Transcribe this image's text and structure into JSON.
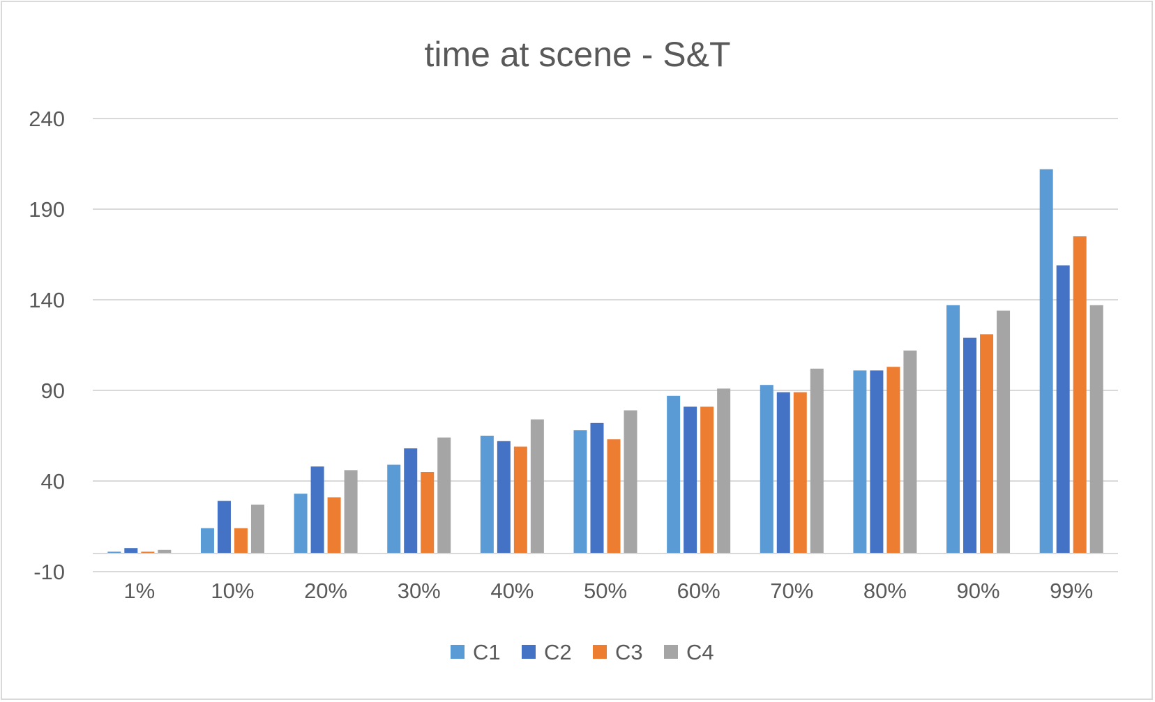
{
  "chart_data": {
    "type": "bar",
    "title": "time at scene - S&T",
    "xlabel": "",
    "ylabel": "",
    "categories": [
      "1%",
      "10%",
      "20%",
      "30%",
      "40%",
      "50%",
      "60%",
      "70%",
      "80%",
      "90%",
      "99%"
    ],
    "ylim": [
      -10,
      240
    ],
    "yticks": [
      "240",
      "190",
      "140",
      "90",
      "40",
      "-10"
    ],
    "ytick_values": [
      240,
      190,
      140,
      90,
      40,
      -10
    ],
    "grid": true,
    "legend_position": "bottom",
    "series": [
      {
        "name": "C1",
        "color": "#5B9BD5",
        "values": [
          1,
          14,
          33,
          49,
          65,
          68,
          87,
          93,
          101,
          137,
          212
        ]
      },
      {
        "name": "C2",
        "color": "#4472C4",
        "values": [
          3,
          29,
          48,
          58,
          62,
          72,
          81,
          89,
          101,
          119,
          159
        ]
      },
      {
        "name": "C3",
        "color": "#ED7D31",
        "values": [
          1,
          14,
          31,
          45,
          59,
          63,
          81,
          89,
          103,
          121,
          175
        ]
      },
      {
        "name": "C4",
        "color": "#A5A5A5",
        "values": [
          2,
          27,
          46,
          64,
          74,
          79,
          91,
          102,
          112,
          134,
          137
        ]
      }
    ]
  }
}
